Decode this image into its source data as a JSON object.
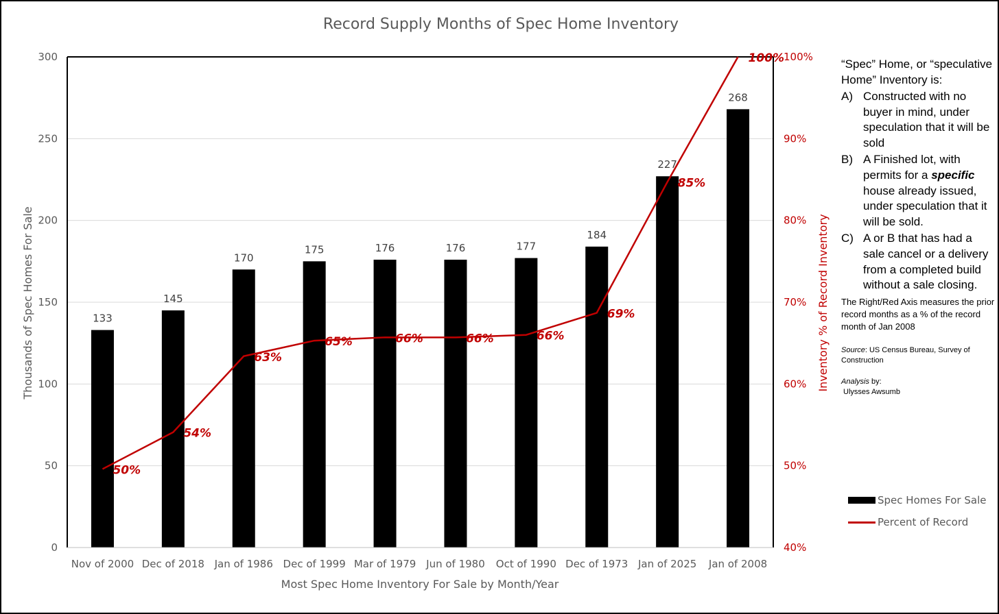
{
  "chart_data": {
    "type": "bar",
    "title": "Record Supply Months of Spec Home Inventory",
    "xlabel": "Most Spec Home Inventory For Sale by Month/Year",
    "ylabel": "Thousands of Spec Homes For Sale",
    "y2label": "Inventory % of Record Inventory",
    "categories": [
      "Nov of 2000",
      "Dec of 2018",
      "Jan of 1986",
      "Dec of 1999",
      "Mar of 1979",
      "Jun of 1980",
      "Oct of 1990",
      "Dec of 1973",
      "Jan of 2025",
      "Jan of 2008"
    ],
    "ylim": [
      0,
      300
    ],
    "yticks": [
      "0",
      "50",
      "100",
      "150",
      "200",
      "250",
      "300"
    ],
    "y2lim": [
      40,
      100
    ],
    "y2ticks": [
      "40%",
      "50%",
      "60%",
      "70%",
      "80%",
      "90%",
      "100%"
    ],
    "grid": true,
    "legend_position": "right",
    "series": [
      {
        "name": "Spec Homes For Sale",
        "type": "bar",
        "axis": "left",
        "color": "#000000",
        "values": [
          133,
          145,
          170,
          175,
          176,
          176,
          177,
          184,
          227,
          268
        ],
        "labels": [
          "133",
          "145",
          "170",
          "175",
          "176",
          "176",
          "177",
          "184",
          "227",
          "268"
        ]
      },
      {
        "name": "Percent of Record",
        "type": "line",
        "axis": "right",
        "color": "#c00000",
        "values": [
          49.6,
          54.1,
          63.4,
          65.3,
          65.7,
          65.7,
          66.0,
          68.7,
          84.7,
          100
        ],
        "labels": [
          "50%",
          "54%",
          "63%",
          "65%",
          "66%",
          "66%",
          "66%",
          "69%",
          "85%",
          "100%"
        ]
      }
    ]
  },
  "note": {
    "heading": "“Spec” Home, or “speculative Home” Inventory is:",
    "items": [
      {
        "letter": "A)",
        "text": "Constructed with no buyer in mind, under speculation that it will be sold"
      },
      {
        "letter": "B)",
        "pre": "A Finished lot, with permits for a ",
        "emph": "specific",
        "post": " house already issued, under speculation that it will be sold."
      },
      {
        "letter": "C)",
        "text": "A or B that has had a sale cancel or a delivery from a completed build without a sale closing."
      }
    ],
    "axis_note": "The Right/Red Axis measures the prior record months as a % of the record month of Jan 2008",
    "source_label": "Source",
    "source_text": ": US Census Bureau, Survey of Construction",
    "analysis_label": "Analysis",
    "analysis_by": " by:",
    "analysis_name": "Ulysses Awsumb"
  },
  "legend": {
    "bar_label": "Spec Homes For Sale",
    "line_label": "Percent of Record"
  }
}
